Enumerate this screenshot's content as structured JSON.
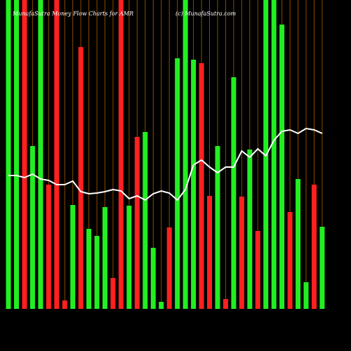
{
  "chart_data": {
    "type": "bar",
    "title": "MunafaSutra  Money Flow  Charts for AMR",
    "subtitle": "(c) MunafaSutra.com",
    "categories": [
      null,
      null,
      null,
      null,
      null,
      null,
      null,
      null,
      null,
      null,
      null,
      null,
      null,
      null,
      null,
      null,
      null,
      null,
      null,
      null,
      null,
      null,
      null,
      null,
      null,
      null,
      null,
      null,
      null,
      null,
      null,
      null,
      null,
      null,
      null,
      null,
      null,
      null,
      null,
      null
    ],
    "values": [
      440,
      440,
      440,
      232,
      440,
      177,
      440,
      12,
      148,
      373,
      114,
      104,
      145,
      44,
      440,
      147,
      245,
      252,
      87,
      10,
      116,
      357,
      440,
      355,
      350,
      161,
      232,
      14,
      330,
      160,
      227,
      111,
      440,
      440,
      405,
      138,
      185,
      38,
      177,
      117
    ],
    "colors": [
      "#22ee22",
      "#22ee22",
      "#ff2020",
      "#22ee22",
      "#22ee22",
      "#ff2020",
      "#ff2020",
      "#ff2020",
      "#22ee22",
      "#ff2020",
      "#22ee22",
      "#22ee22",
      "#22ee22",
      "#ff2020",
      "#ff2020",
      "#22ee22",
      "#ff2020",
      "#22ee22",
      "#22ee22",
      "#22ee22",
      "#ff2020",
      "#22ee22",
      "#22ee22",
      "#22ee22",
      "#ff2020",
      "#ff2020",
      "#22ee22",
      "#ff2020",
      "#22ee22",
      "#ff2020",
      "#22ee22",
      "#ff2020",
      "#22ee22",
      "#22ee22",
      "#22ee22",
      "#ff2020",
      "#22ee22",
      "#22ee22",
      "#ff2020",
      "#22ee22"
    ],
    "line": {
      "color": "#ffffff",
      "values": [
        190,
        190,
        187,
        192,
        185,
        183,
        177,
        177,
        182,
        167,
        164,
        165,
        167,
        170,
        168,
        157,
        161,
        155,
        164,
        168,
        165,
        155,
        170,
        205,
        212,
        202,
        194,
        202,
        202,
        225,
        216,
        228,
        218,
        240,
        253,
        255,
        250,
        257,
        255,
        250
      ]
    },
    "ylim": [
      0,
      440
    ],
    "grid": true,
    "grid_color": "#8b4a00"
  }
}
